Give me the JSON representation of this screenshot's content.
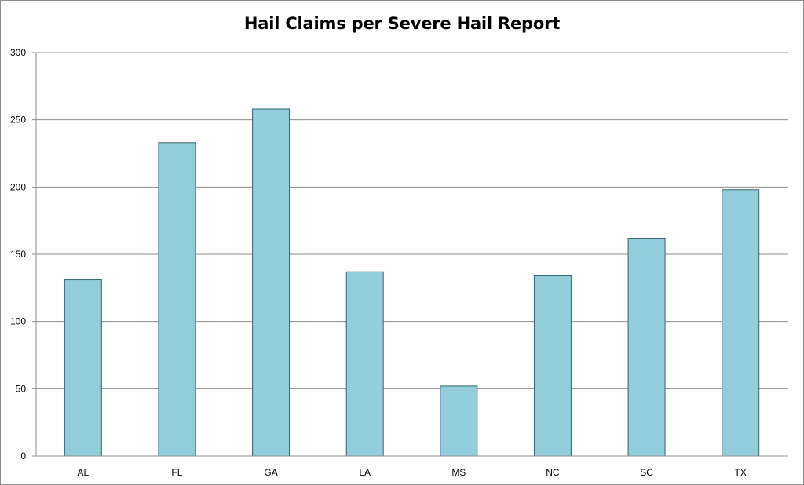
{
  "chart_data": {
    "type": "bar",
    "title": "Hail Claims per Severe Hail Report",
    "xlabel": "",
    "ylabel": "",
    "categories": [
      "AL",
      "FL",
      "GA",
      "LA",
      "MS",
      "NC",
      "SC",
      "TX"
    ],
    "values": [
      131,
      233,
      258,
      137,
      52,
      134,
      162,
      198
    ],
    "ylim": [
      0,
      300
    ],
    "yticks": [
      "0",
      "50",
      "100",
      "150",
      "200",
      "250",
      "300"
    ],
    "grid": true,
    "legend": "none",
    "colors": {
      "bar_fill": "#92cddc",
      "bar_stroke": "#31626f",
      "grid": "#8c8c8c",
      "axis": "#8c8c8c"
    }
  }
}
